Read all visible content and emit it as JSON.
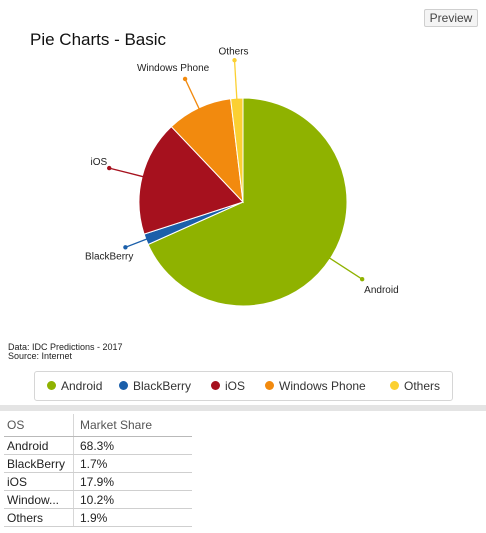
{
  "toolbar": {
    "preview_label": "Preview"
  },
  "source": {
    "line1": "Data: IDC Predictions - 2017",
    "line2": "Source: Internet"
  },
  "colors": {
    "Android": "#8fb200",
    "BlackBerry": "#1b5faa",
    "iOS": "#a6111e",
    "Windows Phone": "#f28a0e",
    "Others": "#fbd032"
  },
  "chart_data": {
    "type": "pie",
    "title": "Pie Charts - Basic",
    "slices": [
      {
        "label": "Android",
        "value": 68.3
      },
      {
        "label": "BlackBerry",
        "value": 1.7
      },
      {
        "label": "iOS",
        "value": 17.9
      },
      {
        "label": "Windows Phone",
        "value": 10.2
      },
      {
        "label": "Others",
        "value": 1.9
      }
    ],
    "legend_position": "bottom",
    "legend_entries": [
      "Android",
      "BlackBerry",
      "iOS",
      "Windows Phone",
      "Others"
    ]
  },
  "table": {
    "headers": [
      "OS",
      "Market Share"
    ],
    "rows": [
      {
        "os": "Android",
        "share": "68.3%"
      },
      {
        "os": "BlackBerry",
        "share": "1.7%"
      },
      {
        "os": "iOS",
        "share": "17.9%"
      },
      {
        "os": "Window...",
        "share": "10.2%"
      },
      {
        "os": "Others",
        "share": "1.9%"
      }
    ]
  }
}
